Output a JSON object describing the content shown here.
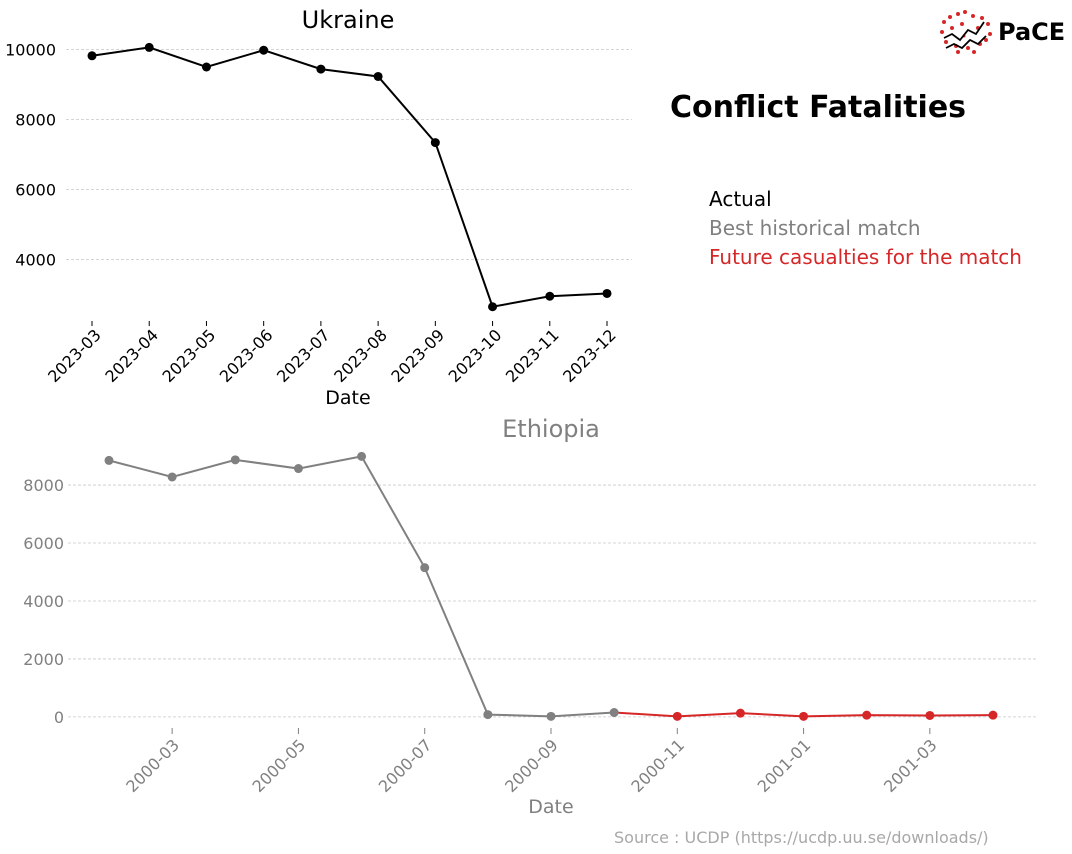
{
  "header": {
    "title": "Conflict Fatalities",
    "logo_text": "PaCE"
  },
  "legend": {
    "actual": "Actual",
    "match": "Best historical match",
    "future": "Future casualties for the match"
  },
  "footer": {
    "source": "Source : UCDP (https://ucdp.uu.se/downloads/)"
  },
  "colors": {
    "actual": "#000000",
    "match": "#808080",
    "future": "#d62728",
    "source": "#a8a8a8",
    "grid": "#c8c8c8"
  },
  "chart_data": [
    {
      "type": "line",
      "title": "Ukraine",
      "xlabel": "Date",
      "ylabel": "",
      "x": [
        "2023-03",
        "2023-04",
        "2023-05",
        "2023-06",
        "2023-07",
        "2023-08",
        "2023-09",
        "2023-10",
        "2023-11",
        "2023-12"
      ],
      "series": [
        {
          "values": [
            9820,
            10060,
            9500,
            9980,
            9440,
            9230,
            7340,
            2650,
            2950,
            3030
          ]
        }
      ],
      "y_ticks": [
        4000,
        6000,
        8000,
        10000
      ],
      "ylim": [
        2300,
        10300
      ],
      "grid": "horizontal dashed",
      "color": "#000000"
    },
    {
      "type": "line",
      "title": "Ethiopia",
      "xlabel": "Date",
      "ylabel": "",
      "x_ticks": [
        "2000-03",
        "2000-05",
        "2000-07",
        "2000-09",
        "2000-11",
        "2001-01",
        "2001-03"
      ],
      "series": [
        {
          "dates": [
            "2000-02",
            "2000-03",
            "2000-04",
            "2000-05",
            "2000-06",
            "2000-07",
            "2000-08",
            "2000-09",
            "2000-10"
          ],
          "values": [
            8850,
            8280,
            8870,
            8570,
            8990,
            5150,
            80,
            20,
            150
          ],
          "color": "#808080"
        },
        {
          "dates": [
            "2000-10",
            "2000-11",
            "2000-12",
            "2001-01",
            "2001-02",
            "2001-03",
            "2001-04"
          ],
          "values": [
            150,
            20,
            130,
            20,
            60,
            50,
            60
          ],
          "color": "#d62728"
        }
      ],
      "y_ticks": [
        0,
        2000,
        4000,
        6000,
        8000
      ],
      "ylim": [
        -300,
        9500
      ],
      "grid": "horizontal dashed"
    }
  ]
}
